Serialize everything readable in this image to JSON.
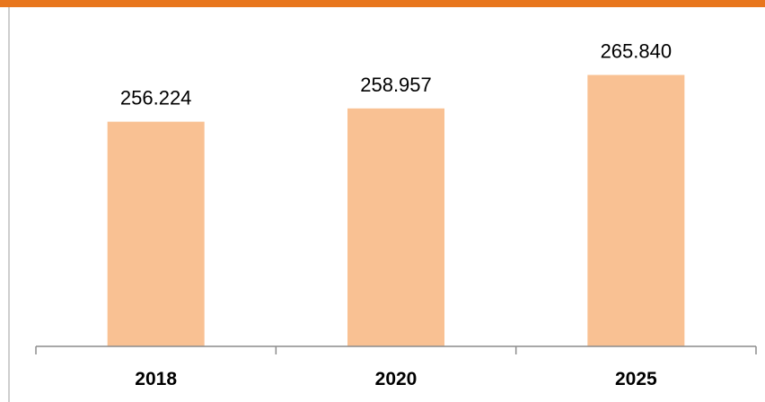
{
  "colors": {
    "accent_bar": "#e8761d",
    "bar_fill": "#f9c193",
    "axis": "#8c8c8c",
    "frame": "#bfbfbf"
  },
  "chart_data": {
    "type": "bar",
    "categories": [
      "2018",
      "2020",
      "2025"
    ],
    "values": [
      256.224,
      258.957,
      265.84
    ],
    "value_labels": [
      "256.224",
      "258.957",
      "265.840"
    ],
    "title": "",
    "xlabel": "",
    "ylabel": "",
    "ylim": [
      210,
      270
    ],
    "grid": false,
    "legend": "none"
  }
}
